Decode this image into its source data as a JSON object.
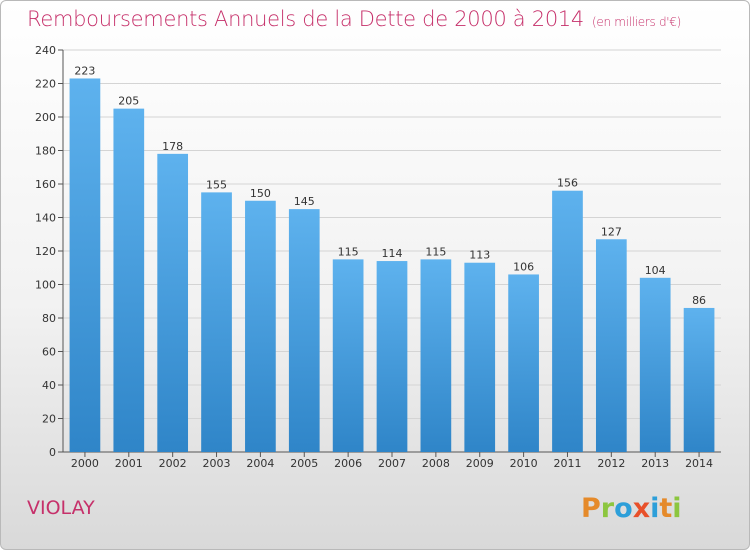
{
  "header": {
    "title": "Remboursements Annuels de la Dette de 2000 à 2014",
    "unit": "(en milliers d'€)"
  },
  "commune": "VIOLAY",
  "logo": {
    "text": "Proxiti",
    "colors": [
      "#e58a2a",
      "#8cc63f",
      "#2d9fd9",
      "#e8502a",
      "#2d9fd9",
      "#e58a2a",
      "#8cc63f"
    ]
  },
  "colors": {
    "bar_top": "#5eb2ee",
    "bar_bottom": "#2f85c8",
    "title": "#c6306a"
  },
  "chart_data": {
    "type": "bar",
    "title": "Remboursements Annuels de la Dette de 2000 à 2014",
    "ylabel": "",
    "xlabel": "",
    "categories": [
      "2000",
      "2001",
      "2002",
      "2003",
      "2004",
      "2005",
      "2006",
      "2007",
      "2008",
      "2009",
      "2010",
      "2011",
      "2012",
      "2013",
      "2014"
    ],
    "values": [
      223,
      205,
      178,
      155,
      150,
      145,
      115,
      114,
      115,
      113,
      106,
      156,
      127,
      104,
      86
    ],
    "ylim": [
      0,
      240
    ],
    "yticks": [
      0,
      20,
      40,
      60,
      80,
      100,
      120,
      140,
      160,
      180,
      200,
      220,
      240
    ],
    "grid": true,
    "data_labels": true
  }
}
